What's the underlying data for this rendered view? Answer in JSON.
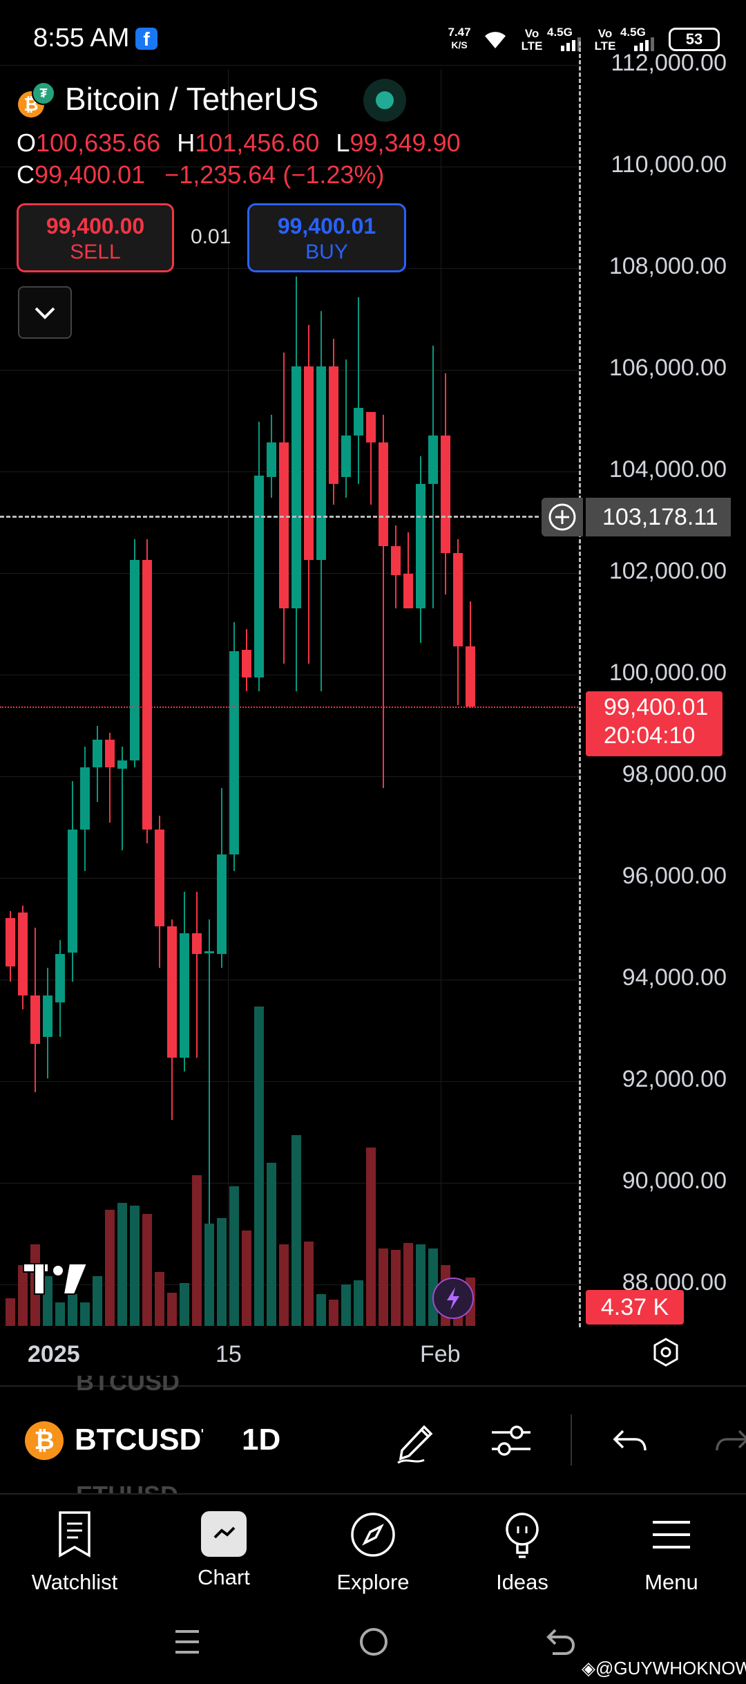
{
  "status_bar": {
    "time": "8:55 AM",
    "net_speed": "7.47",
    "net_unit": "K/S",
    "sim1_top": "Vo",
    "sim1_bottom": "LTE",
    "sim1_gen": "4.5G",
    "sim2_top": "Vo",
    "sim2_bottom": "LTE",
    "sim2_gen": "4.5G",
    "battery": "53"
  },
  "header": {
    "title": "Bitcoin / TetherUS",
    "open_label": "O",
    "open": "100,635.66",
    "high_label": "H",
    "high": "101,456.60",
    "low_label": "L",
    "low": "99,349.90",
    "close_label": "C",
    "close": "99,400.01",
    "change": "−1,235.64 (−1.23%)",
    "sell_price": "99,400.00",
    "sell_label": "SELL",
    "spread": "0.01",
    "buy_price": "99,400.01",
    "buy_label": "BUY"
  },
  "price_axis": {
    "labels": [
      "112,000.00",
      "110,000.00",
      "108,000.00",
      "106,000.00",
      "104,000.00",
      "102,000.00",
      "100,000.00",
      "98,000.00",
      "96,000.00",
      "94,000.00",
      "92,000.00",
      "90,000.00",
      "88,000.00"
    ],
    "crosshair_price": "103,178.11",
    "last_price": "99,400.01",
    "countdown": "20:04:10",
    "volume_label": "4.37 K"
  },
  "time_axis": {
    "labels": [
      "2025",
      "15",
      "Feb"
    ]
  },
  "toolbar": {
    "symbol": "BTCUSDT",
    "symbol_above": "BTCUSD",
    "symbol_below": "ETHUSD",
    "interval": "1D"
  },
  "tabs": [
    {
      "label": "Watchlist",
      "icon": "watchlist-icon"
    },
    {
      "label": "Chart",
      "icon": "chart-icon"
    },
    {
      "label": "Explore",
      "icon": "compass-icon"
    },
    {
      "label": "Ideas",
      "icon": "lightbulb-icon"
    },
    {
      "label": "Menu",
      "icon": "menu-icon"
    }
  ],
  "watermark": "@GUYWHOKNOW",
  "colors": {
    "up": "#089981",
    "down": "#f23645",
    "buy": "#2962ff",
    "background": "#000000"
  }
}
